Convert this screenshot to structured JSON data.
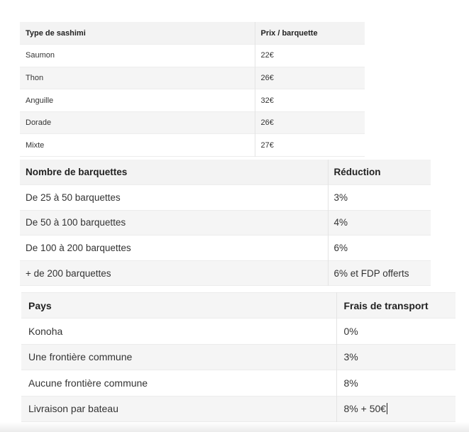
{
  "sashimi_table": {
    "headers": [
      "Type de sashimi",
      "Prix / barquette"
    ],
    "rows": [
      [
        "Saumon",
        "22€"
      ],
      [
        "Thon",
        "26€"
      ],
      [
        "Anguille",
        "32€"
      ],
      [
        "Dorade",
        "26€"
      ],
      [
        "Mixte",
        "27€"
      ]
    ]
  },
  "reduction_table": {
    "headers": [
      "Nombre de barquettes",
      "Réduction"
    ],
    "rows": [
      [
        "De 25 à 50 barquettes",
        "3%"
      ],
      [
        "De 50 à 100 barquettes",
        "4%"
      ],
      [
        "De 100 à 200 barquettes",
        "6%"
      ],
      [
        "+ de 200 barquettes",
        "6% et FDP offerts"
      ]
    ]
  },
  "transport_table": {
    "headers": [
      "Pays",
      "Frais de transport"
    ],
    "rows": [
      [
        "Konoha",
        "0%"
      ],
      [
        "Une frontière commune",
        "3%"
      ],
      [
        "Aucune frontière commune",
        "8%"
      ],
      [
        "Livraison par bateau",
        "8% + 50€"
      ]
    ]
  }
}
